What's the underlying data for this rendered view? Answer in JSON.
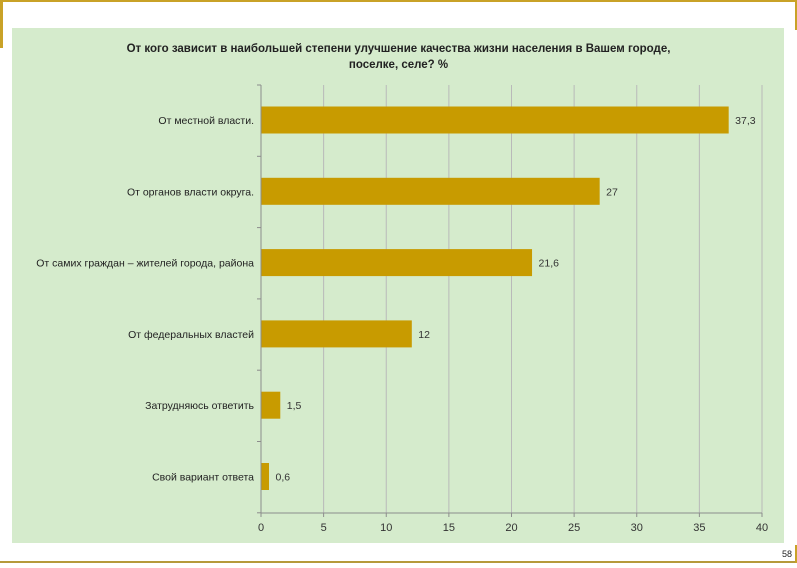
{
  "chart_data": {
    "type": "bar",
    "orientation": "horizontal",
    "title_line1": "От кого зависит в наибольшей степени улучшение качества жизни населения в Вашем городе,",
    "title_line2": "поселке, селе? %",
    "categories": [
      "От местной власти.",
      "От органов власти округа.",
      "От самих граждан – жителей города, района",
      "От федеральных властей",
      "Затрудняюсь ответить",
      "Свой вариант ответа"
    ],
    "values": [
      37.3,
      27,
      21.6,
      12,
      1.5,
      0.6
    ],
    "value_labels": [
      "37,3",
      "27",
      "21,6",
      "12",
      "1,5",
      "0,6"
    ],
    "xlim": [
      0,
      40
    ],
    "ticks": [
      0,
      5,
      10,
      15,
      20,
      25,
      30,
      35,
      40
    ],
    "grid": true,
    "legend": "none",
    "colors": {
      "bar": "#c89b00",
      "panel": "#d5ebcc",
      "grid": "#b9b9b9",
      "frame": "#c9a227"
    }
  },
  "page_number": "58"
}
